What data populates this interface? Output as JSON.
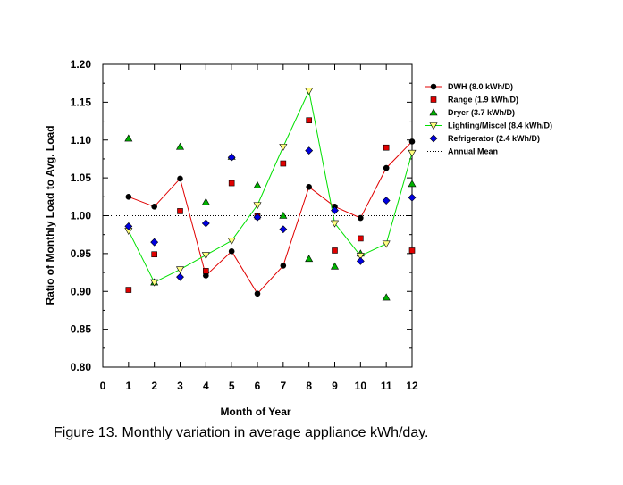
{
  "chart_data": {
    "type": "scatter",
    "xlabel": "Month of Year",
    "ylabel": "Ratio of Monthly Load to Avg. Load",
    "xlim": [
      0,
      12
    ],
    "ylim": [
      0.8,
      1.2
    ],
    "x_ticks": [
      "0",
      "1",
      "2",
      "3",
      "4",
      "5",
      "6",
      "7",
      "8",
      "9",
      "10",
      "11",
      "12"
    ],
    "y_ticks": [
      "0.80",
      "0.85",
      "0.90",
      "0.95",
      "1.00",
      "1.05",
      "1.10",
      "1.15",
      "1.20"
    ],
    "annual_mean": 1.0,
    "x": [
      1,
      2,
      3,
      4,
      5,
      6,
      7,
      8,
      9,
      10,
      11,
      12
    ],
    "series": [
      {
        "name": "DWH (8.0 kWh/D)",
        "marker": "circle",
        "color": "#000000",
        "line_color": "#e00000",
        "connected": true,
        "values": [
          1.025,
          1.012,
          1.049,
          0.921,
          0.953,
          0.897,
          0.934,
          1.038,
          1.012,
          0.997,
          1.063,
          1.098
        ]
      },
      {
        "name": "Range (1.9 kWh/D)",
        "marker": "square",
        "color": "#e00000",
        "connected": false,
        "values": [
          0.902,
          0.949,
          1.006,
          0.927,
          1.043,
          0.999,
          1.069,
          1.126,
          0.954,
          0.97,
          1.09,
          0.954
        ]
      },
      {
        "name": "Dryer (3.7 kWh/D)",
        "marker": "triangle-up",
        "color": "#00b000",
        "connected": false,
        "values": [
          1.102,
          0.912,
          1.091,
          1.018,
          1.078,
          1.04,
          1.0,
          0.943,
          0.933,
          0.95,
          0.892,
          1.042
        ]
      },
      {
        "name": "Lighting/Miscel (8.4 kWh/D)",
        "marker": "triangle-down",
        "color": "#ffff80",
        "line_color": "#00e000",
        "connected": true,
        "values": [
          0.98,
          0.912,
          0.929,
          0.948,
          0.967,
          1.014,
          1.091,
          1.165,
          0.99,
          0.947,
          0.963,
          1.083
        ]
      },
      {
        "name": "Refrigerator (2.4 kWh/D)",
        "marker": "diamond",
        "color": "#0000e0",
        "connected": false,
        "values": [
          0.986,
          0.965,
          0.919,
          0.99,
          1.077,
          0.998,
          0.982,
          1.086,
          1.007,
          0.94,
          1.02,
          1.024
        ]
      }
    ],
    "legend": [
      "DWH (8.0 kWh/D)",
      "Range (1.9 kWh/D)",
      "Dryer (3.7 kWh/D)",
      "Lighting/Miscel (8.4 kWh/D)",
      "Refrigerator (2.4 kWh/D)",
      "Annual Mean"
    ],
    "legend_position": "right",
    "grid": false
  },
  "caption": "Figure 13.  Monthly variation in average appliance kWh/day."
}
